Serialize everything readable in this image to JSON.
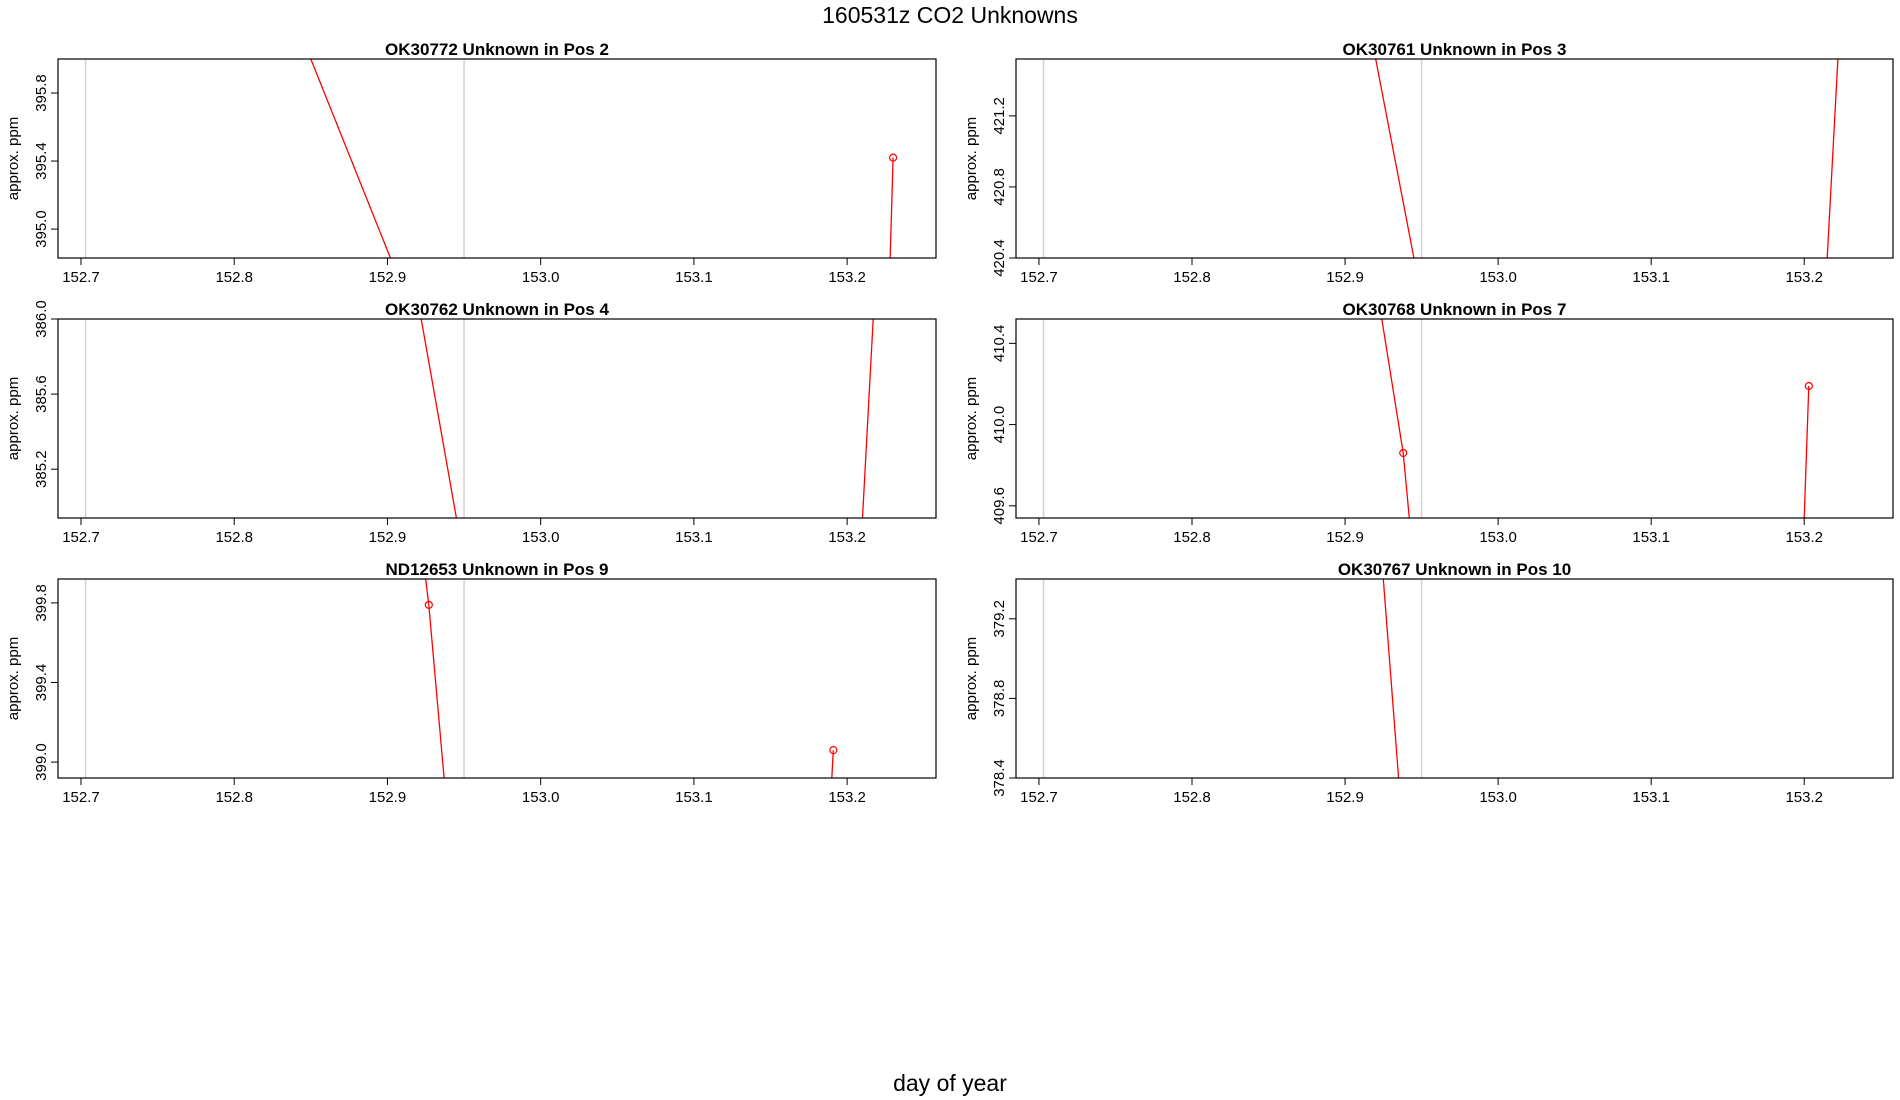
{
  "figure": {
    "title": "160531z  CO2 Unknowns",
    "xlabel": "day of year"
  },
  "colors": {
    "series": "#ff0000",
    "vline": "#d3d3d3",
    "axis": "#000000"
  },
  "chart_data": [
    {
      "type": "line",
      "title": "OK30772    Unknown in Pos 2",
      "ylabel": "approx. ppm",
      "xlim": [
        152.685,
        153.258
      ],
      "ylim": [
        394.83,
        396.0
      ],
      "x_ticks": [
        "152.7",
        "152.8",
        "152.9",
        "153.0",
        "153.1",
        "153.2"
      ],
      "y_ticks": [
        "395.0",
        "395.4",
        "395.8"
      ],
      "vlines": [
        152.703,
        152.95
      ],
      "series": [
        {
          "x": [
            152.81,
            152.93
          ],
          "y": [
            396.9,
            394.2
          ],
          "markers": []
        },
        {
          "x": [
            153.228,
            153.23
          ],
          "y": [
            394.8,
            395.42
          ],
          "markers": [
            1
          ]
        }
      ]
    },
    {
      "type": "line",
      "title": "OK30761    Unknown in Pos 3",
      "ylabel": "approx. ppm",
      "xlim": [
        152.685,
        153.258
      ],
      "ylim": [
        420.4,
        421.52
      ],
      "x_ticks": [
        "152.7",
        "152.8",
        "152.9",
        "153.0",
        "153.1",
        "153.2"
      ],
      "y_ticks": [
        "420.4",
        "420.8",
        "421.2"
      ],
      "vlines": [
        152.703,
        152.95
      ],
      "series": [
        {
          "x": [
            152.92,
            152.945
          ],
          "y": [
            421.52,
            420.4
          ],
          "markers": []
        },
        {
          "x": [
            153.215,
            153.222
          ],
          "y": [
            420.4,
            421.52
          ],
          "markers": []
        }
      ]
    },
    {
      "type": "line",
      "title": "OK30762    Unknown in Pos 4",
      "ylabel": "approx. ppm",
      "xlim": [
        152.685,
        153.258
      ],
      "ylim": [
        384.94,
        386.0
      ],
      "x_ticks": [
        "152.7",
        "152.8",
        "152.9",
        "153.0",
        "153.1",
        "153.2"
      ],
      "y_ticks": [
        "385.2",
        "385.6",
        "386.0"
      ],
      "vlines": [
        152.703,
        152.95
      ],
      "series": [
        {
          "x": [
            152.922,
            152.945
          ],
          "y": [
            386.0,
            384.94
          ],
          "markers": []
        },
        {
          "x": [
            153.21,
            153.217
          ],
          "y": [
            384.94,
            386.0
          ],
          "markers": []
        }
      ]
    },
    {
      "type": "line",
      "title": "OK30768    Unknown in Pos 7",
      "ylabel": "approx. ppm",
      "xlim": [
        152.685,
        153.258
      ],
      "ylim": [
        409.54,
        410.52
      ],
      "x_ticks": [
        "152.7",
        "152.8",
        "152.9",
        "153.0",
        "153.1",
        "153.2"
      ],
      "y_ticks": [
        "409.6",
        "410.0",
        "410.4"
      ],
      "vlines": [
        152.703,
        152.95
      ],
      "series": [
        {
          "x": [
            152.924,
            152.938,
            152.942
          ],
          "y": [
            410.52,
            409.86,
            409.54
          ],
          "markers": [
            1
          ]
        },
        {
          "x": [
            153.2,
            153.203
          ],
          "y": [
            409.54,
            410.19
          ],
          "markers": [
            1
          ]
        }
      ]
    },
    {
      "type": "line",
      "title": "ND12653    Unknown in Pos 9",
      "ylabel": "approx. ppm",
      "xlim": [
        152.685,
        153.258
      ],
      "ylim": [
        398.92,
        399.92
      ],
      "x_ticks": [
        "152.7",
        "152.8",
        "152.9",
        "153.0",
        "153.1",
        "153.2"
      ],
      "y_ticks": [
        "399.0",
        "399.4",
        "399.8"
      ],
      "vlines": [
        152.703,
        152.95
      ],
      "series": [
        {
          "x": [
            152.925,
            152.927,
            152.937
          ],
          "y": [
            399.92,
            399.79,
            398.92
          ],
          "markers": [
            1
          ]
        },
        {
          "x": [
            153.19,
            153.191
          ],
          "y": [
            398.92,
            399.06
          ],
          "markers": [
            1
          ]
        }
      ]
    },
    {
      "type": "line",
      "title": "OK30767    Unknown in Pos 10",
      "ylabel": "approx. ppm",
      "xlim": [
        152.685,
        153.258
      ],
      "ylim": [
        378.4,
        379.4
      ],
      "x_ticks": [
        "152.7",
        "152.8",
        "152.9",
        "153.0",
        "153.1",
        "153.2"
      ],
      "y_ticks": [
        "378.4",
        "378.8",
        "379.2"
      ],
      "vlines": [
        152.703,
        152.95
      ],
      "series": [
        {
          "x": [
            152.925,
            152.935
          ],
          "y": [
            379.4,
            378.4
          ],
          "markers": []
        }
      ]
    }
  ]
}
